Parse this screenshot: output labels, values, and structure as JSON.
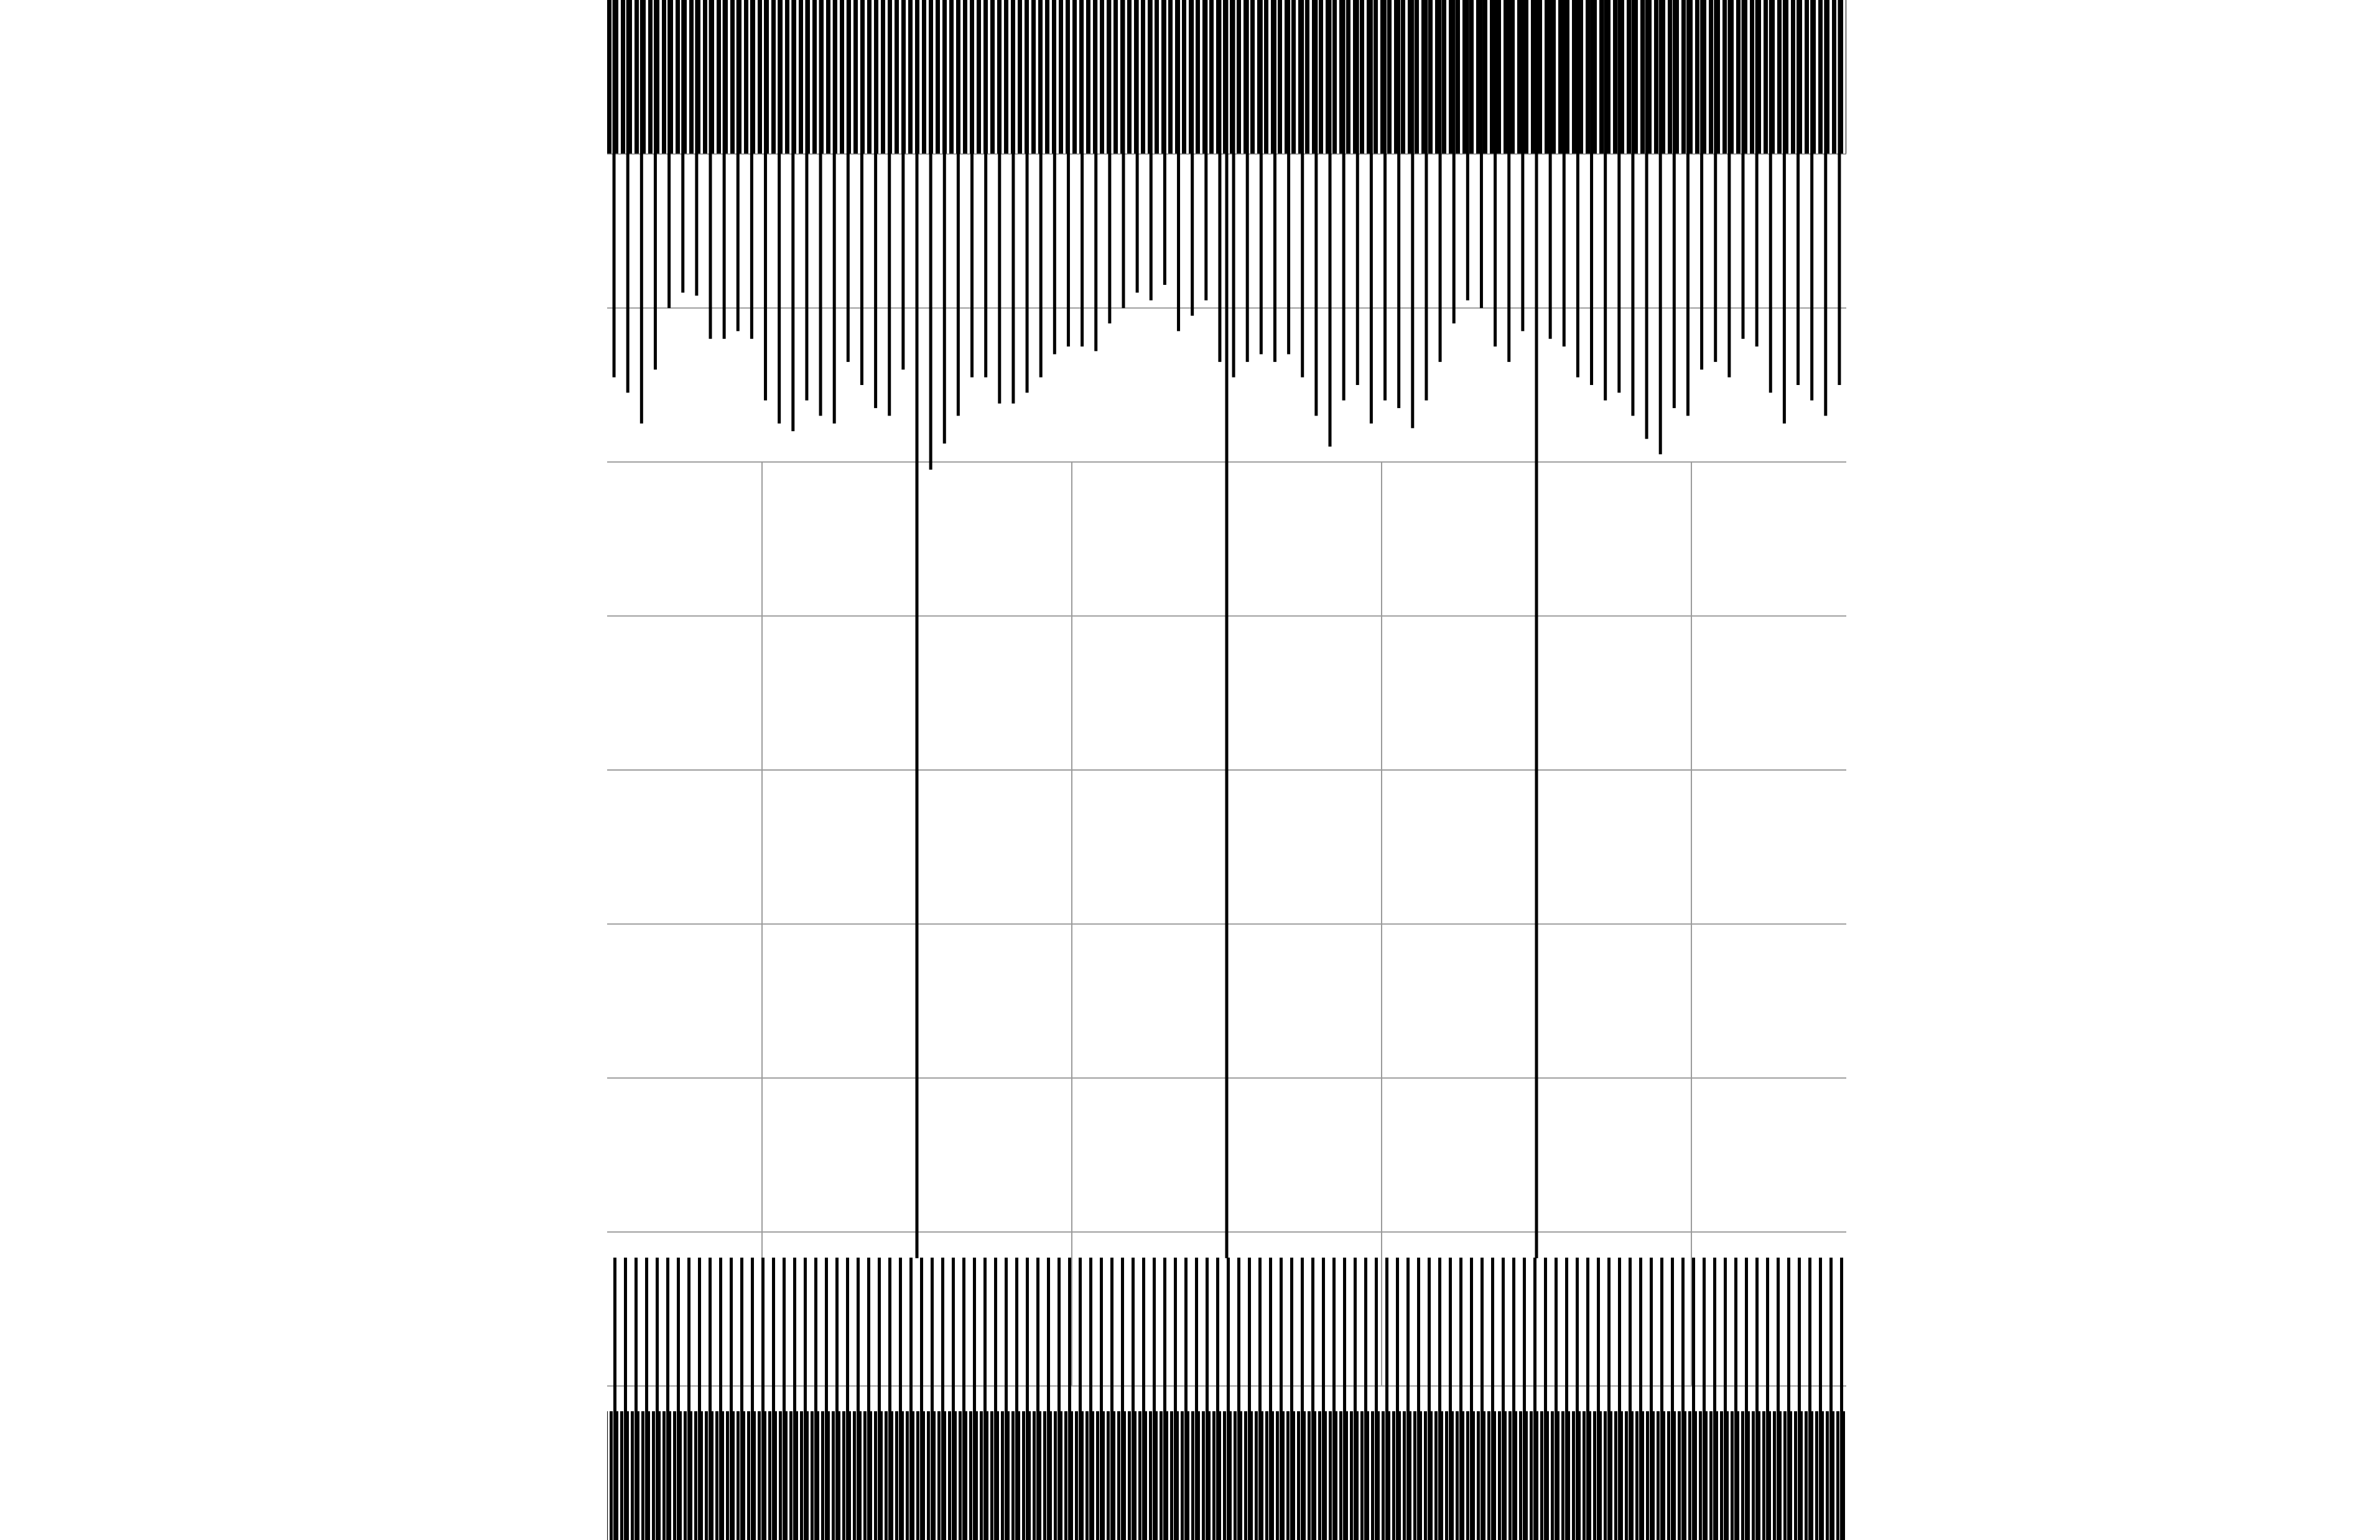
{
  "chart_data": {
    "type": "bar",
    "values": [
      2.45,
      2.55,
      2.75,
      2.4,
      2.0,
      1.9,
      1.92,
      2.2,
      2.2,
      2.15,
      2.2,
      2.6,
      2.75,
      2.8,
      2.6,
      2.7,
      2.75,
      2.35,
      2.5,
      2.65,
      2.7,
      2.4,
      2.5,
      3.05,
      2.88,
      2.7,
      2.45,
      2.45,
      2.62,
      2.62,
      2.55,
      2.45,
      2.3,
      2.25,
      2.25,
      2.28,
      2.1,
      2.0,
      1.9,
      1.95,
      1.85,
      2.15,
      2.05,
      1.95,
      2.35,
      2.45,
      2.35,
      2.3,
      2.35,
      2.3,
      2.45,
      2.7,
      2.9,
      2.6,
      2.5,
      2.75,
      2.6,
      2.65,
      2.78,
      2.6,
      2.35,
      2.1,
      1.95,
      2.0,
      2.25,
      2.35,
      2.15,
      2.2,
      2.2,
      2.25,
      2.45,
      2.5,
      2.6,
      2.55,
      2.7,
      2.85,
      2.95,
      2.65,
      2.7,
      2.4,
      2.35,
      2.45,
      2.2,
      2.25,
      2.55,
      2.75,
      2.5,
      2.6,
      2.7,
      2.5
    ],
    "color": "#000000",
    "spikes": {
      "x": [
        1,
        2,
        3
      ],
      "values": [
        8.17,
        8.17,
        8.17
      ]
    },
    "xlim": [
      0,
      4
    ],
    "xticks": [
      0.5,
      1.5,
      2.5,
      3.5
    ],
    "ylim": [
      0,
      10
    ],
    "yticks": [
      1,
      2,
      3,
      4,
      5,
      6,
      7,
      8,
      9
    ],
    "y_inverted": true,
    "grid": true
  }
}
